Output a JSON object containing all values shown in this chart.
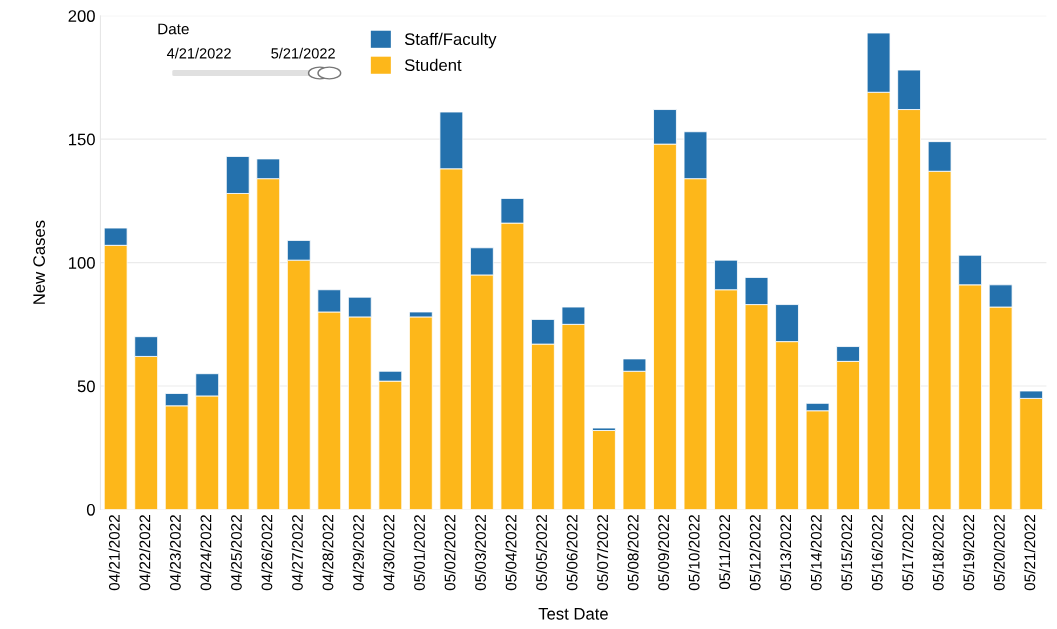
{
  "chart_data": {
    "type": "bar",
    "stacked": true,
    "xlabel": "Test Date",
    "ylabel": "New Cases",
    "categories": [
      "04/21/2022",
      "04/22/2022",
      "04/23/2022",
      "04/24/2022",
      "04/25/2022",
      "04/26/2022",
      "04/27/2022",
      "04/28/2022",
      "04/29/2022",
      "04/30/2022",
      "05/01/2022",
      "05/02/2022",
      "05/03/2022",
      "05/04/2022",
      "05/05/2022",
      "05/06/2022",
      "05/07/2022",
      "05/08/2022",
      "05/09/2022",
      "05/10/2022",
      "05/11/2022",
      "05/12/2022",
      "05/13/2022",
      "05/14/2022",
      "05/15/2022",
      "05/16/2022",
      "05/17/2022",
      "05/18/2022",
      "05/19/2022",
      "05/20/2022",
      "05/21/2022"
    ],
    "series": [
      {
        "name": "Student",
        "color": "#fdb71a",
        "values": [
          107,
          62,
          42,
          46,
          128,
          134,
          101,
          80,
          78,
          52,
          78,
          138,
          95,
          116,
          67,
          75,
          32,
          56,
          148,
          134,
          89,
          83,
          68,
          40,
          60,
          169,
          162,
          137,
          91,
          82,
          45
        ]
      },
      {
        "name": "Staff/Faculty",
        "color": "#2471ad",
        "values": [
          7,
          8,
          5,
          9,
          15,
          8,
          8,
          9,
          8,
          4,
          2,
          23,
          11,
          10,
          10,
          7,
          1,
          5,
          14,
          19,
          12,
          11,
          15,
          3,
          6,
          24,
          16,
          12,
          12,
          9,
          3
        ]
      }
    ],
    "ylim": [
      0,
      200
    ],
    "yticks": [
      0,
      50,
      100,
      150,
      200
    ],
    "grid": "y",
    "legend": "top left",
    "annotations": [
      "Date",
      "4/21/2022",
      "5/21/2022"
    ]
  }
}
